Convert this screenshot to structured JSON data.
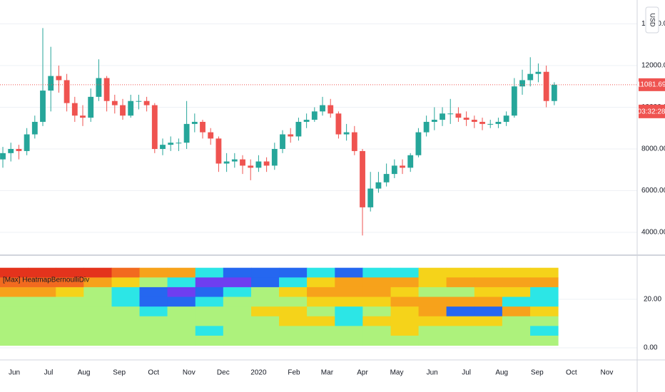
{
  "chart_data": [
    {
      "type": "candlestick",
      "x": [
        -10,
        -3,
        4,
        11,
        18,
        25,
        32,
        39,
        46,
        53,
        60,
        67,
        74,
        81,
        88,
        95,
        102,
        109,
        116,
        123,
        130,
        137,
        144,
        151,
        158,
        165,
        172,
        179,
        186,
        193,
        200,
        207,
        214,
        221,
        228,
        235,
        242,
        249,
        256,
        263,
        270,
        277,
        284,
        291,
        298,
        305,
        312,
        319,
        326,
        333,
        340,
        347,
        354,
        361,
        368,
        375,
        382,
        389,
        396,
        403,
        410,
        417,
        424,
        431,
        438,
        445,
        452,
        459,
        466,
        473
      ],
      "open": [
        7500,
        7800,
        8000,
        7900,
        8700,
        9300,
        10800,
        11500,
        11300,
        10200,
        9600,
        9500,
        10500,
        11400,
        10300,
        10100,
        9600,
        10300,
        10300,
        10100,
        8000,
        8200,
        8300,
        8300,
        9200,
        9300,
        8800,
        8500,
        7300,
        7400,
        7500,
        7200,
        7100,
        7400,
        7200,
        8000,
        8700,
        8600,
        9300,
        9400,
        9800,
        10100,
        9700,
        8700,
        8800,
        7900,
        5200,
        6100,
        6400,
        6800,
        7200,
        7100,
        7700,
        8800,
        9300,
        9400,
        9700,
        9700,
        9500,
        9400,
        9300,
        9200,
        9200,
        9300,
        9600,
        11000,
        11300,
        11600,
        11700,
        10300
      ],
      "high": [
        8100,
        8300,
        8200,
        9000,
        9600,
        13800,
        12900,
        12000,
        11600,
        10500,
        10100,
        10900,
        12300,
        11500,
        10600,
        10400,
        10600,
        10600,
        10500,
        10200,
        8500,
        8600,
        8500,
        10300,
        9700,
        9400,
        9000,
        8600,
        7800,
        7800,
        7700,
        7500,
        7700,
        7600,
        8300,
        8900,
        9000,
        9500,
        9700,
        10000,
        10500,
        10400,
        9800,
        9200,
        9100,
        8000,
        6900,
        6900,
        7300,
        7500,
        7500,
        7800,
        9000,
        9600,
        10000,
        10000,
        10400,
        10000,
        9800,
        9600,
        9500,
        9400,
        9500,
        9800,
        11400,
        11800,
        12400,
        12100,
        12000,
        11200
      ],
      "low": [
        7100,
        7400,
        7500,
        7700,
        8500,
        9100,
        9800,
        10700,
        9800,
        9300,
        9100,
        9300,
        10300,
        9800,
        9700,
        9400,
        9500,
        9900,
        9800,
        7800,
        7700,
        7900,
        7900,
        8000,
        8800,
        8500,
        8200,
        6900,
        6900,
        7100,
        6800,
        6500,
        6900,
        6900,
        7000,
        7800,
        8300,
        8400,
        9000,
        9300,
        9600,
        9500,
        8500,
        8400,
        7700,
        3850,
        5000,
        5900,
        6200,
        6600,
        6800,
        6900,
        7600,
        8600,
        8900,
        9100,
        9200,
        9300,
        9100,
        9000,
        8900,
        9000,
        9000,
        9100,
        9500,
        10600,
        11000,
        11200,
        10000,
        10100
      ],
      "close": [
        7800,
        8000,
        7900,
        8700,
        9300,
        10800,
        11500,
        11300,
        10200,
        9600,
        9500,
        10500,
        11400,
        10300,
        10100,
        9600,
        10300,
        10300,
        10100,
        8000,
        8200,
        8300,
        8300,
        9200,
        9300,
        8800,
        8500,
        7300,
        7400,
        7500,
        7200,
        7100,
        7400,
        7200,
        8000,
        8700,
        8600,
        9300,
        9400,
        9800,
        10100,
        9700,
        8700,
        8800,
        7900,
        5200,
        6100,
        6400,
        6800,
        7200,
        7100,
        7700,
        8800,
        9300,
        9400,
        9700,
        9700,
        9500,
        9400,
        9300,
        9200,
        9200,
        9300,
        9600,
        11000,
        11300,
        11600,
        11700,
        10300,
        11081.69
      ],
      "up_color": "#26a69a",
      "down_color": "#ef5350",
      "xlim": [
        -12.5,
        545.6
      ],
      "xticks": [
        {
          "value": 0,
          "label": "Jun"
        },
        {
          "value": 30,
          "label": "Jul"
        },
        {
          "value": 61,
          "label": "Aug"
        },
        {
          "value": 92,
          "label": "Sep"
        },
        {
          "value": 122,
          "label": "Oct"
        },
        {
          "value": 153,
          "label": "Nov"
        },
        {
          "value": 183,
          "label": "Dec"
        },
        {
          "value": 214,
          "label": "2020"
        },
        {
          "value": 245,
          "label": "Feb"
        },
        {
          "value": 274,
          "label": "Mar"
        },
        {
          "value": 305,
          "label": "Apr"
        },
        {
          "value": 335,
          "label": "May"
        },
        {
          "value": 366,
          "label": "Jun"
        },
        {
          "value": 396,
          "label": "Jul"
        },
        {
          "value": 427,
          "label": "Aug"
        },
        {
          "value": 458,
          "label": "Sep"
        },
        {
          "value": 488,
          "label": "Oct"
        },
        {
          "value": 519,
          "label": "Nov"
        }
      ],
      "ylim": [
        2906,
        15145
      ],
      "yticks": [
        {
          "value": 4000,
          "label": "4000.00"
        },
        {
          "value": 6000,
          "label": "6000.00"
        },
        {
          "value": 8000,
          "label": "8000.00"
        },
        {
          "value": 10000,
          "label": "10000.00"
        },
        {
          "value": 12000,
          "label": "12000.00"
        },
        {
          "value": 14000,
          "label": "14000.00"
        }
      ],
      "grid": true,
      "price_label": "11081.69",
      "countdown": "03:32:28",
      "currency": "USD"
    },
    {
      "type": "heatmap",
      "title": "[Max] HeatmapBernoulliDiv",
      "xbins": [
        -12.5,
        11.9,
        36.4,
        60.8,
        85.3,
        109.7,
        134.1,
        158.6,
        183.0,
        207.5,
        231.9,
        256.3,
        280.8,
        305.2,
        329.7,
        354.1,
        378.5,
        403.0,
        427.4,
        451.9,
        476.3
      ],
      "ybins": [
        33,
        29,
        25,
        21,
        17,
        13,
        9,
        5,
        1
      ],
      "z": [
        [
          4,
          4,
          4,
          4,
          3,
          2,
          2,
          5,
          6,
          6,
          6,
          5,
          6,
          5,
          5,
          1,
          1,
          1,
          1,
          1
        ],
        [
          3,
          3,
          3,
          2,
          1,
          0,
          5,
          7,
          7,
          6,
          5,
          1,
          2,
          2,
          2,
          1,
          2,
          2,
          2,
          2
        ],
        [
          2,
          2,
          1,
          0,
          5,
          6,
          7,
          6,
          5,
          0,
          1,
          2,
          2,
          2,
          1,
          0,
          0,
          1,
          1,
          5
        ],
        [
          0,
          0,
          0,
          0,
          5,
          6,
          6,
          5,
          0,
          0,
          0,
          1,
          1,
          1,
          2,
          2,
          2,
          2,
          5,
          5
        ],
        [
          0,
          0,
          0,
          0,
          0,
          5,
          0,
          0,
          0,
          1,
          1,
          0,
          5,
          0,
          1,
          2,
          6,
          6,
          2,
          1
        ],
        [
          0,
          0,
          0,
          0,
          0,
          0,
          0,
          0,
          0,
          0,
          1,
          1,
          5,
          1,
          1,
          1,
          1,
          1,
          0,
          0
        ],
        [
          0,
          0,
          0,
          0,
          0,
          0,
          0,
          5,
          0,
          0,
          0,
          0,
          0,
          0,
          1,
          0,
          0,
          0,
          0,
          5
        ],
        [
          0,
          0,
          0,
          0,
          0,
          0,
          0,
          0,
          0,
          0,
          0,
          0,
          0,
          0,
          0,
          0,
          0,
          0,
          0,
          0
        ]
      ],
      "colors": [
        "#adf27c",
        "#f5d31a",
        "#f7a21b",
        "#f26a1f",
        "#e4331c",
        "#2ce6e6",
        "#2567f0",
        "#6f3ef0"
      ],
      "ylim": [
        -5,
        38.2
      ],
      "yticks": [
        {
          "value": 0,
          "label": "0.00"
        },
        {
          "value": 20,
          "label": "20.00"
        }
      ],
      "grid": true
    }
  ]
}
